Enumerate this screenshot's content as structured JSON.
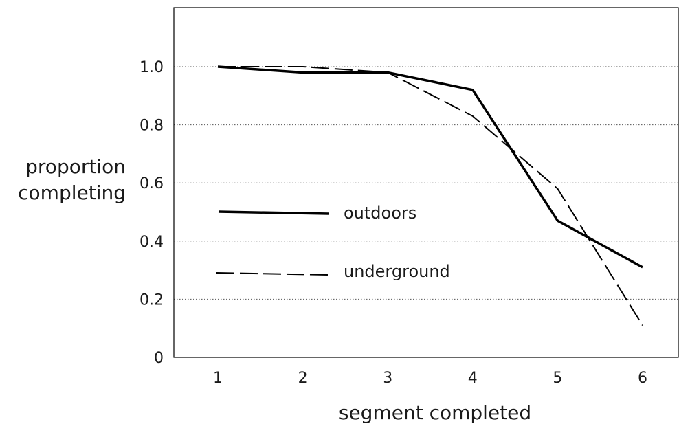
{
  "chart_data": {
    "type": "line",
    "title": "",
    "xlabel": "segment completed",
    "ylabel_lines": [
      "proportion",
      "completing"
    ],
    "x": [
      1,
      2,
      3,
      4,
      5,
      6
    ],
    "x_ticks": [
      "1",
      "2",
      "3",
      "4",
      "5",
      "6"
    ],
    "y_ticks": [
      {
        "value": 0,
        "label": "0"
      },
      {
        "value": 0.2,
        "label": "0.2"
      },
      {
        "value": 0.4,
        "label": "0.4"
      },
      {
        "value": 0.6,
        "label": "0.6"
      },
      {
        "value": 0.8,
        "label": "0.8"
      },
      {
        "value": 1.0,
        "label": "1.0"
      }
    ],
    "xlim": [
      0.5,
      6.5
    ],
    "ylim": [
      0,
      1.2
    ],
    "grid": "horizontal dotted",
    "legend_position": "left-center",
    "series": [
      {
        "name": "outdoors",
        "style": "solid",
        "values": [
          1.0,
          0.98,
          0.98,
          0.92,
          0.47,
          0.31
        ]
      },
      {
        "name": "underground",
        "style": "dashed",
        "values": [
          1.0,
          1.0,
          0.98,
          0.83,
          0.58,
          0.11
        ]
      }
    ]
  }
}
